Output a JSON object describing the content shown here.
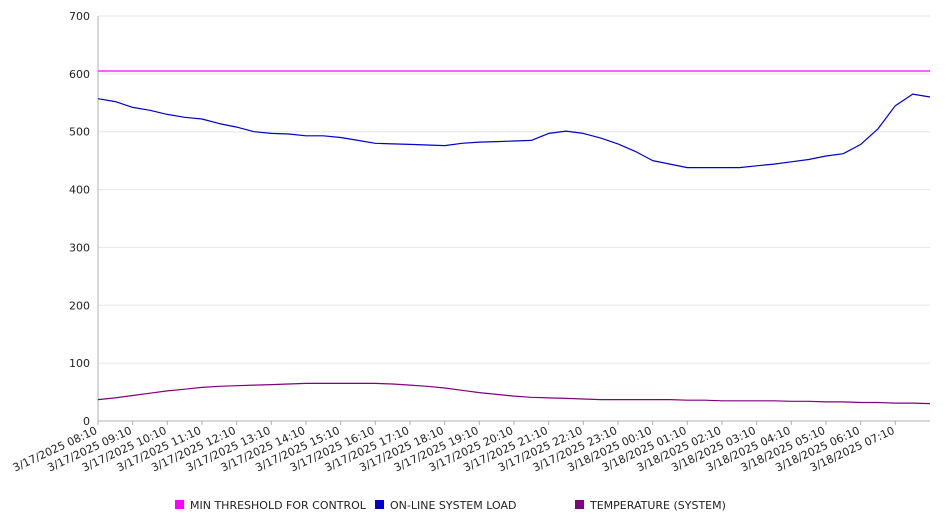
{
  "chart_data": {
    "type": "line",
    "title": "",
    "xlabel": "",
    "ylabel": "",
    "ylim": [
      0,
      700
    ],
    "y_ticks": [
      0,
      100,
      200,
      300,
      400,
      500,
      600,
      700
    ],
    "grid": "horizontal",
    "legend_position": "bottom",
    "x_ticks": [
      "3/17/2025 08:10",
      "3/17/2025 09:10",
      "3/17/2025 10:10",
      "3/17/2025 11:10",
      "3/17/2025 12:10",
      "3/17/2025 13:10",
      "3/17/2025 14:10",
      "3/17/2025 15:10",
      "3/17/2025 16:10",
      "3/17/2025 17:10",
      "3/17/2025 18:10",
      "3/17/2025 19:10",
      "3/17/2025 20:10",
      "3/17/2025 21:10",
      "3/17/2025 22:10",
      "3/17/2025 23:10",
      "3/18/2025 00:10",
      "3/18/2025 01:10",
      "3/18/2025 02:10",
      "3/18/2025 03:10",
      "3/18/2025 04:10",
      "3/18/2025 05:10",
      "3/18/2025 06:10",
      "3/18/2025 07:10"
    ],
    "x": [
      "3/17/2025 08:10",
      "3/17/2025 08:40",
      "3/17/2025 09:10",
      "3/17/2025 09:40",
      "3/17/2025 10:10",
      "3/17/2025 10:40",
      "3/17/2025 11:10",
      "3/17/2025 11:40",
      "3/17/2025 12:10",
      "3/17/2025 12:40",
      "3/17/2025 13:10",
      "3/17/2025 13:40",
      "3/17/2025 14:10",
      "3/17/2025 14:40",
      "3/17/2025 15:10",
      "3/17/2025 15:40",
      "3/17/2025 16:10",
      "3/17/2025 16:40",
      "3/17/2025 17:10",
      "3/17/2025 17:40",
      "3/17/2025 18:10",
      "3/17/2025 18:40",
      "3/17/2025 19:10",
      "3/17/2025 19:40",
      "3/17/2025 20:10",
      "3/17/2025 20:40",
      "3/17/2025 21:10",
      "3/17/2025 21:40",
      "3/17/2025 22:10",
      "3/17/2025 22:40",
      "3/17/2025 23:10",
      "3/17/2025 23:40",
      "3/18/2025 00:10",
      "3/18/2025 00:40",
      "3/18/2025 01:10",
      "3/18/2025 01:40",
      "3/18/2025 02:10",
      "3/18/2025 02:40",
      "3/18/2025 03:10",
      "3/18/2025 03:40",
      "3/18/2025 04:10",
      "3/18/2025 04:40",
      "3/18/2025 05:10",
      "3/18/2025 05:40",
      "3/18/2025 06:10",
      "3/18/2025 06:40",
      "3/18/2025 07:10",
      "3/18/2025 07:40",
      "3/18/2025 08:10"
    ],
    "series": [
      {
        "name": "MIN THRESHOLD FOR CONTROL",
        "color": "#ff00ff",
        "values": [
          605,
          605,
          605,
          605,
          605,
          605,
          605,
          605,
          605,
          605,
          605,
          605,
          605,
          605,
          605,
          605,
          605,
          605,
          605,
          605,
          605,
          605,
          605,
          605,
          605,
          605,
          605,
          605,
          605,
          605,
          605,
          605,
          605,
          605,
          605,
          605,
          605,
          605,
          605,
          605,
          605,
          605,
          605,
          605,
          605,
          605,
          605,
          605,
          605
        ]
      },
      {
        "name": "ON-LINE SYSTEM LOAD",
        "color": "#0000cc",
        "values": [
          557,
          552,
          542,
          537,
          530,
          525,
          522,
          514,
          508,
          500,
          497,
          496,
          493,
          493,
          490,
          485,
          480,
          479,
          478,
          477,
          476,
          480,
          482,
          483,
          484,
          485,
          497,
          501,
          497,
          489,
          479,
          466,
          450,
          444,
          438,
          438,
          438,
          438,
          441,
          444,
          448,
          452,
          458,
          462,
          478,
          505,
          545,
          565,
          560
        ]
      },
      {
        "name": "TEMPERATURE (SYSTEM)",
        "color": "#800080",
        "values": [
          37,
          40,
          44,
          48,
          52,
          55,
          58,
          60,
          61,
          62,
          63,
          64,
          65,
          65,
          65,
          65,
          65,
          64,
          62,
          60,
          57,
          53,
          49,
          46,
          43,
          41,
          40,
          39,
          38,
          37,
          37,
          37,
          37,
          37,
          36,
          36,
          35,
          35,
          35,
          35,
          34,
          34,
          33,
          33,
          32,
          32,
          31,
          31,
          30
        ]
      }
    ]
  }
}
